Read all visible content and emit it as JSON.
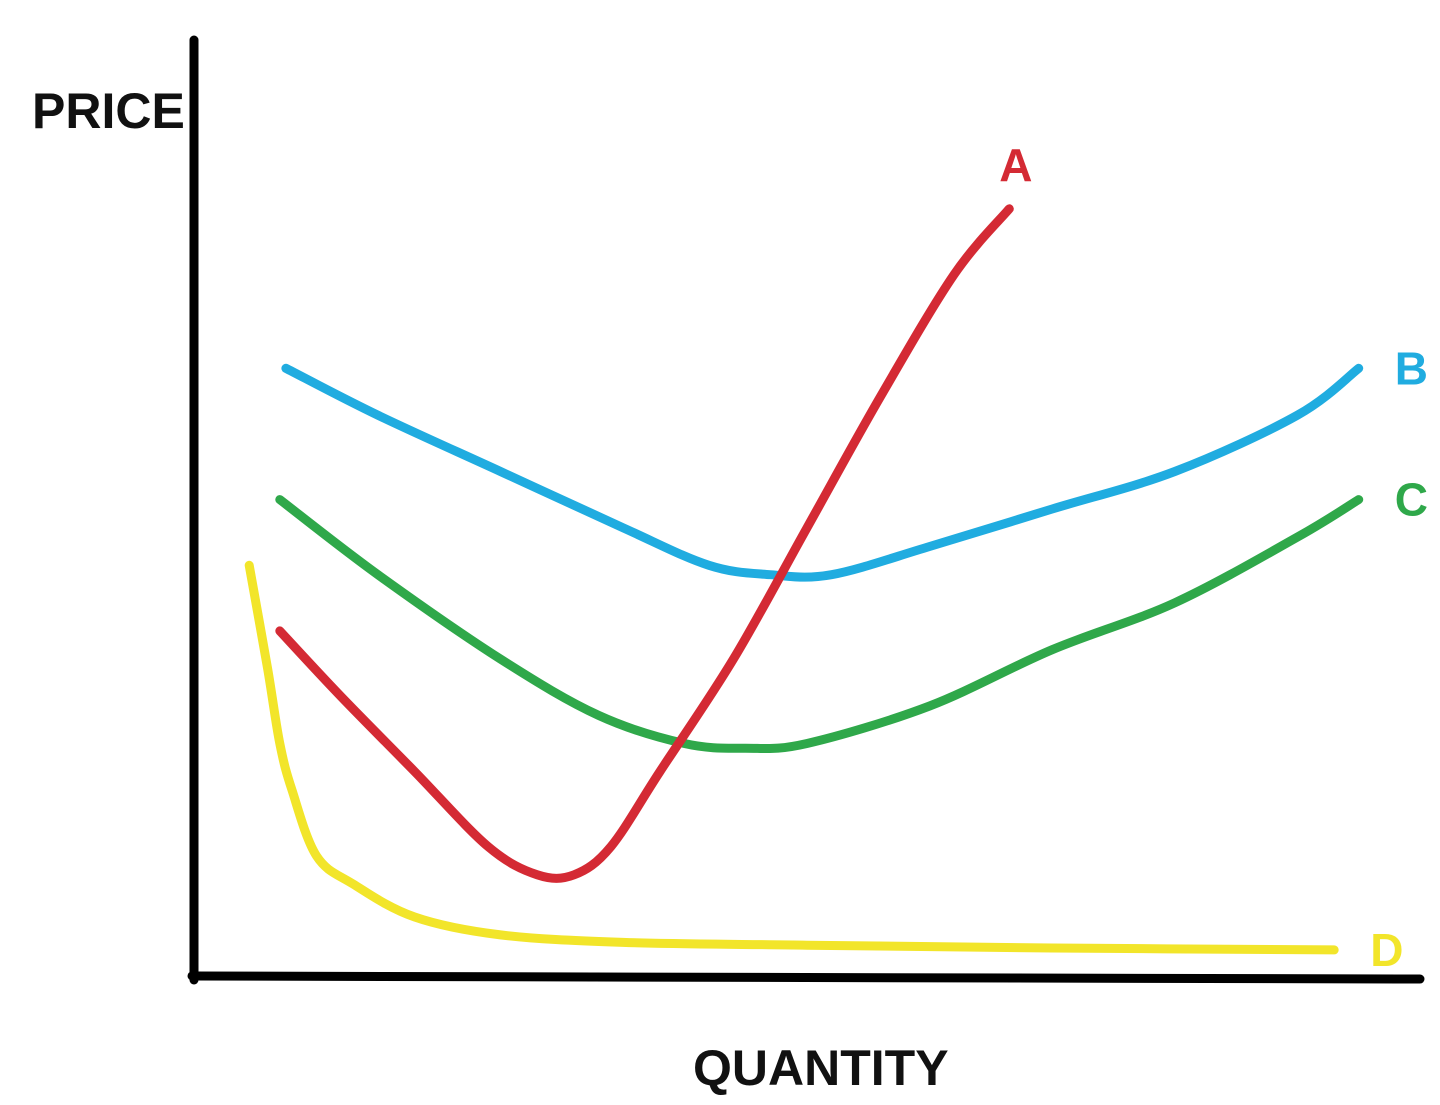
{
  "chart_data": {
    "type": "line",
    "title": "",
    "xlabel": "QUANTITY",
    "ylabel": "PRICE",
    "xlim": [
      0,
      100
    ],
    "ylim": [
      0,
      100
    ],
    "grid": false,
    "legend": "none",
    "series": [
      {
        "name": "A",
        "color": "#d42a34",
        "x": [
          7,
          12,
          18,
          24,
          28,
          31,
          34,
          38,
          44,
          50,
          56,
          62,
          66.5
        ],
        "y": [
          37,
          30,
          22,
          14,
          11,
          11,
          14,
          22,
          34,
          48,
          62,
          75,
          82
        ]
      },
      {
        "name": "B",
        "color": "#20ace0",
        "x": [
          7.5,
          15,
          25,
          35,
          42,
          47,
          52,
          60,
          70,
          80,
          90,
          95
        ],
        "y": [
          65,
          60,
          54,
          48,
          44,
          43,
          43,
          46,
          50,
          54,
          60,
          65
        ]
      },
      {
        "name": "C",
        "color": "#2fa84a",
        "x": [
          7,
          15,
          25,
          33,
          40,
          45,
          50,
          60,
          70,
          80,
          90,
          95
        ],
        "y": [
          51,
          43,
          34,
          28,
          25,
          24.5,
          25,
          29,
          35,
          40,
          47,
          51
        ]
      },
      {
        "name": "D",
        "color": "#f2e52a",
        "x": [
          4.5,
          6,
          7,
          8,
          10,
          13,
          18,
          25,
          35,
          50,
          70,
          93
        ],
        "y": [
          44,
          33,
          25,
          20,
          13,
          10,
          6.5,
          4.6,
          3.8,
          3.5,
          3.2,
          3
        ]
      }
    ]
  }
}
